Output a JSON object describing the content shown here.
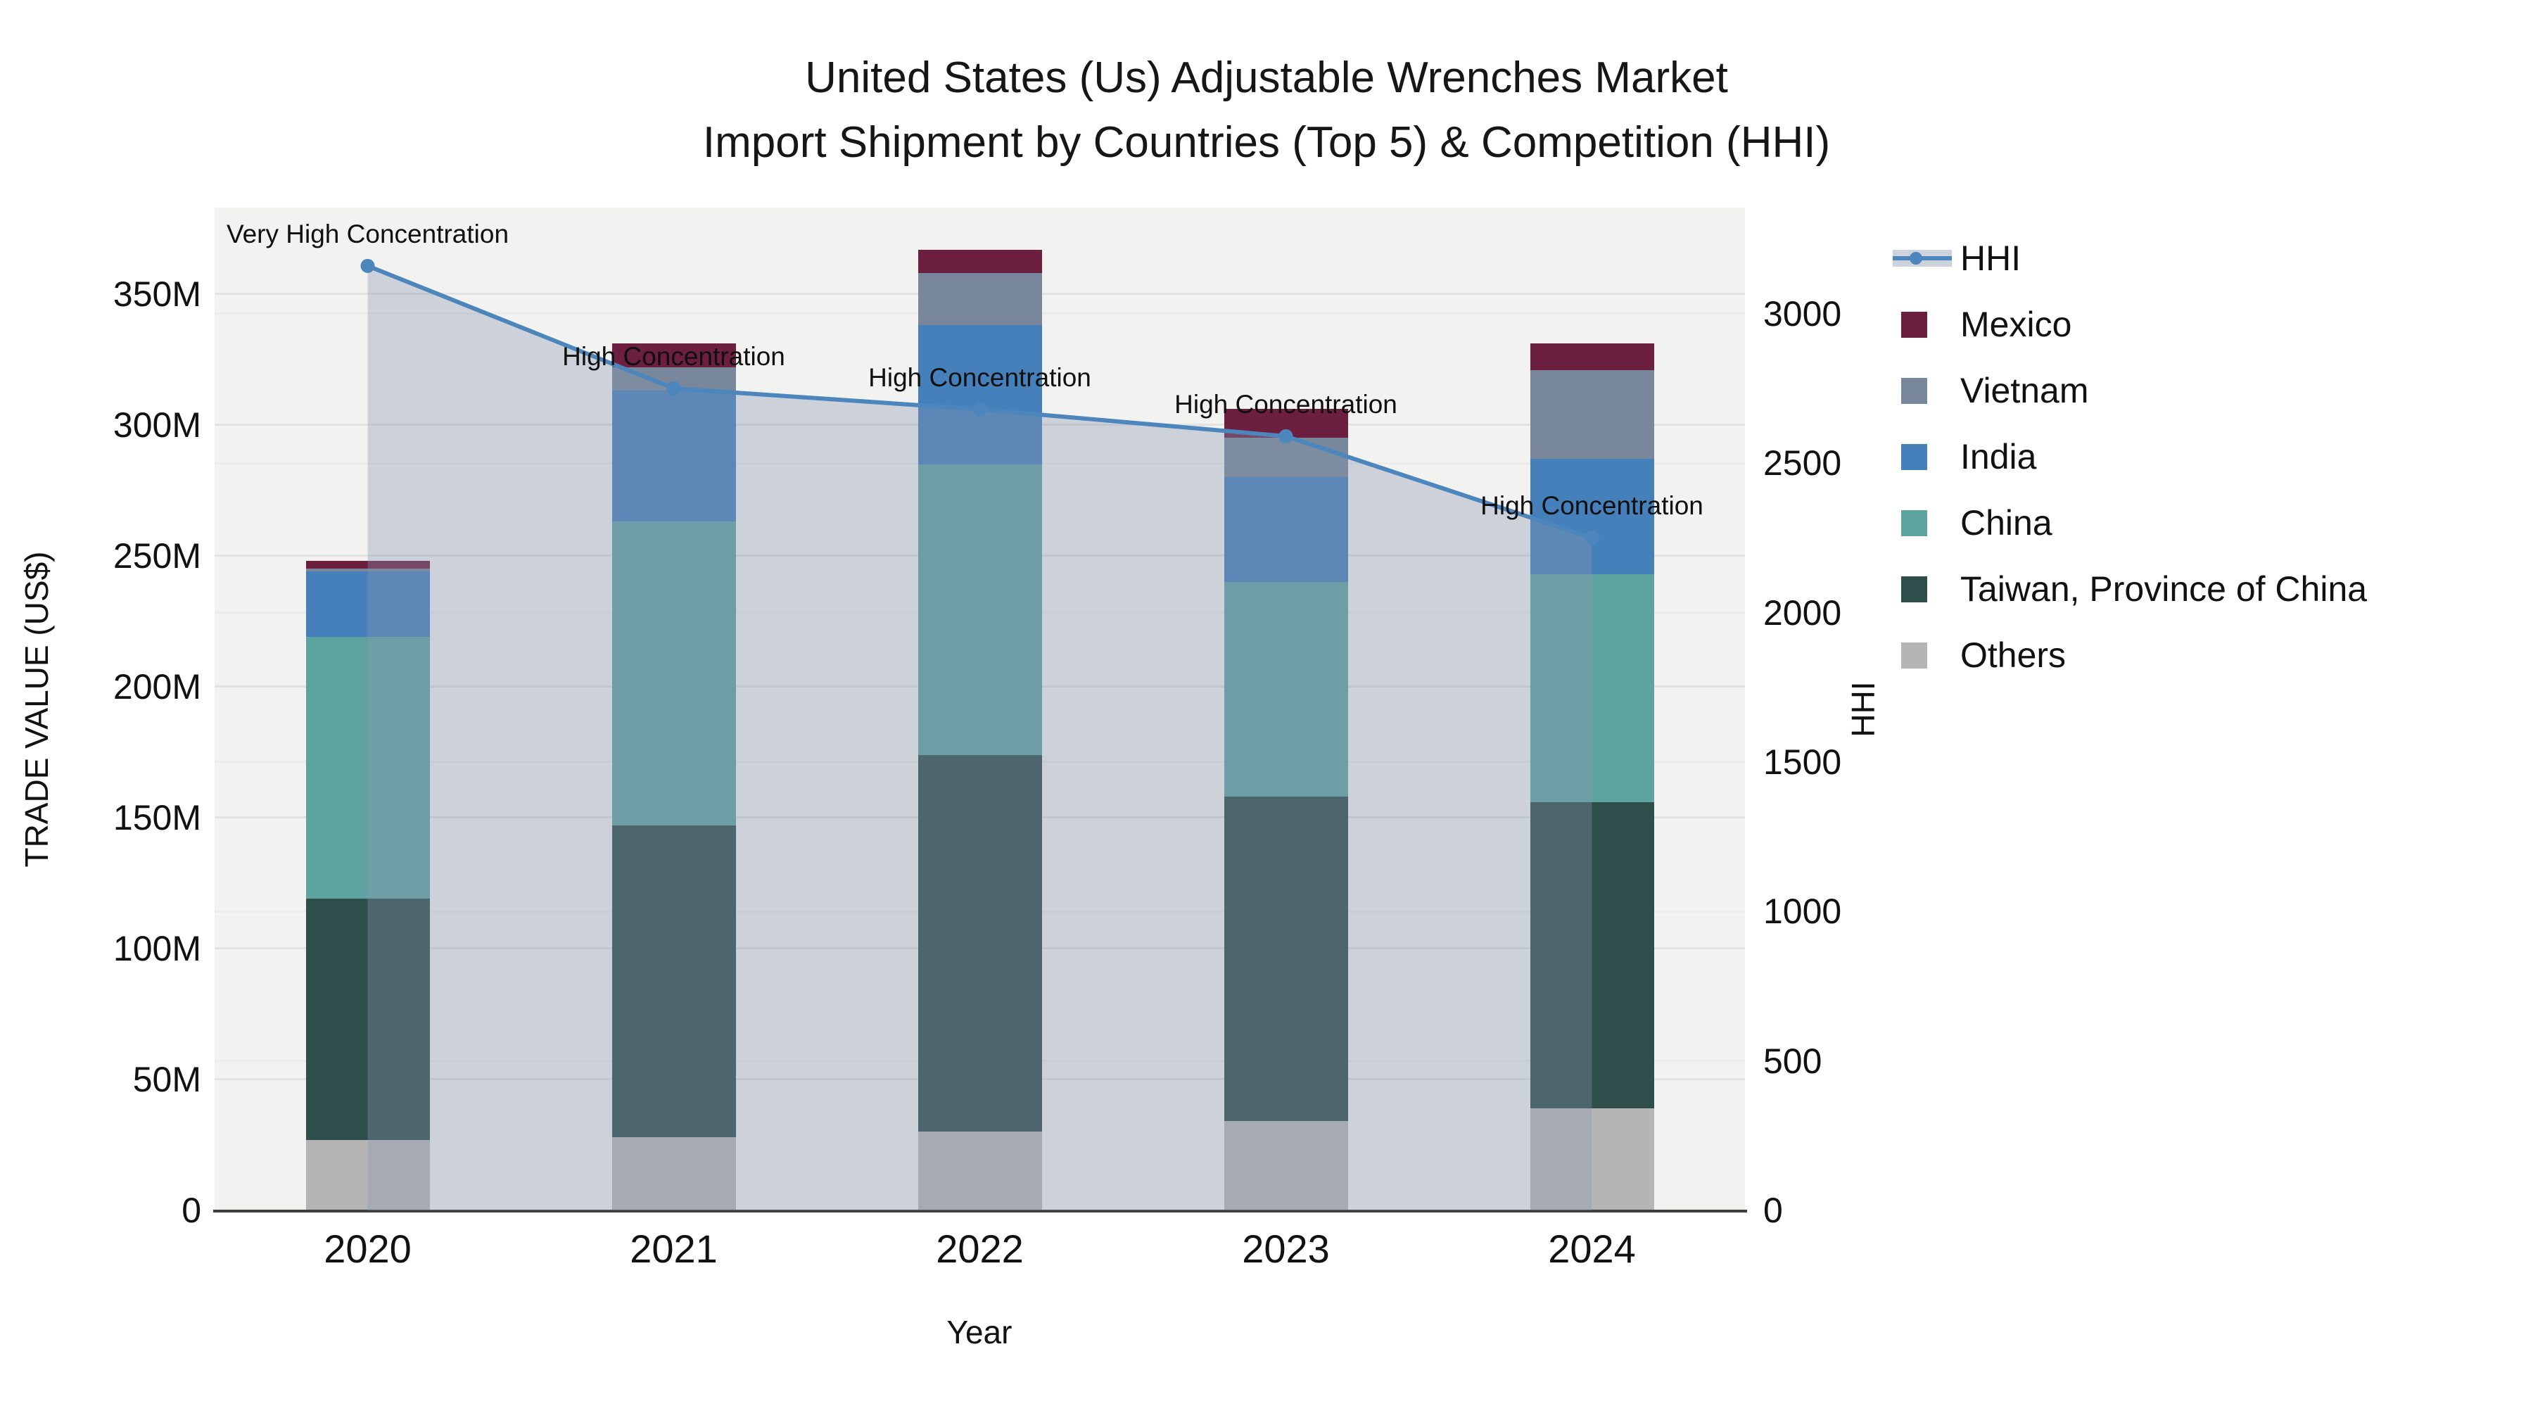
{
  "title": {
    "line1": "United States (Us) Adjustable Wrenches Market",
    "line2": "Import Shipment by Countries (Top 5) & Competition (HHI)"
  },
  "axes": {
    "left": {
      "title": "TRADE VALUE (US$)",
      "ticks": [
        {
          "label": "0",
          "value": 0
        },
        {
          "label": "50M",
          "value": 50
        },
        {
          "label": "100M",
          "value": 100
        },
        {
          "label": "150M",
          "value": 150
        },
        {
          "label": "200M",
          "value": 200
        },
        {
          "label": "250M",
          "value": 250
        },
        {
          "label": "300M",
          "value": 300
        },
        {
          "label": "350M",
          "value": 350
        }
      ]
    },
    "right": {
      "title": "HHI",
      "ticks": [
        {
          "label": "0",
          "value": 0
        },
        {
          "label": "500",
          "value": 500
        },
        {
          "label": "1000",
          "value": 1000
        },
        {
          "label": "1500",
          "value": 1500
        },
        {
          "label": "2000",
          "value": 2000
        },
        {
          "label": "2500",
          "value": 2500
        },
        {
          "label": "3000",
          "value": 3000
        }
      ]
    },
    "x": {
      "title": "Year"
    }
  },
  "legend": {
    "items": [
      {
        "label": "HHI",
        "type": "line",
        "color": "#4C86BD",
        "band_color": "#CCD3DC"
      },
      {
        "label": "Mexico",
        "type": "swatch",
        "color": "#6C1F3E"
      },
      {
        "label": "Vietnam",
        "type": "swatch",
        "color": "#78879B"
      },
      {
        "label": "India",
        "type": "swatch",
        "color": "#4680BB"
      },
      {
        "label": "China",
        "type": "swatch",
        "color": "#5EA3A0"
      },
      {
        "label": "Taiwan, Province of China",
        "type": "swatch",
        "color": "#2D4E4B"
      },
      {
        "label": "Others",
        "type": "swatch",
        "color": "#B5B5B5"
      }
    ]
  },
  "chart_data": {
    "type": "bar",
    "stacked": true,
    "title": "United States (Us) Adjustable Wrenches Market Import Shipment by Countries (Top 5) & Competition (HHI)",
    "xlabel": "Year",
    "ylabel": "TRADE VALUE (US$)",
    "ylabel_right": "HHI",
    "categories": [
      "2020",
      "2021",
      "2022",
      "2023",
      "2024"
    ],
    "value_unit": "million US$",
    "series": [
      {
        "name": "Others",
        "color": "#B5B5B5",
        "values": [
          27,
          28,
          30,
          34,
          39
        ]
      },
      {
        "name": "Taiwan, Province of China",
        "color": "#2D4E4B",
        "values": [
          92,
          119,
          144,
          124,
          117
        ]
      },
      {
        "name": "China",
        "color": "#5EA3A0",
        "values": [
          100,
          116,
          111,
          82,
          87
        ]
      },
      {
        "name": "India",
        "color": "#4680BB",
        "values": [
          25,
          50,
          53,
          40,
          44
        ]
      },
      {
        "name": "Vietnam",
        "color": "#78879B",
        "values": [
          1,
          9,
          20,
          15,
          34
        ]
      },
      {
        "name": "Mexico",
        "color": "#6C1F3E",
        "values": [
          3,
          9,
          9,
          11,
          10
        ]
      }
    ],
    "bar_totals": [
      248,
      331,
      367,
      306,
      331
    ],
    "line_overlay": {
      "name": "HHI",
      "yaxis": "right",
      "color": "#4C86BD",
      "fill_color": "rgba(137,148,176,0.35)",
      "values": [
        3160,
        2750,
        2680,
        2590,
        2250
      ]
    },
    "annotations": [
      {
        "category": "2020",
        "text": "Very High Concentration"
      },
      {
        "category": "2021",
        "text": "High Concentration"
      },
      {
        "category": "2022",
        "text": "High Concentration"
      },
      {
        "category": "2023",
        "text": "High Concentration"
      },
      {
        "category": "2024",
        "text": "High Concentration"
      }
    ],
    "ylim_left": [
      0,
      383
    ],
    "ylim_right": [
      0,
      3355
    ],
    "grid": true,
    "legend_position": "right",
    "plot_background": "#f2f3f1"
  }
}
